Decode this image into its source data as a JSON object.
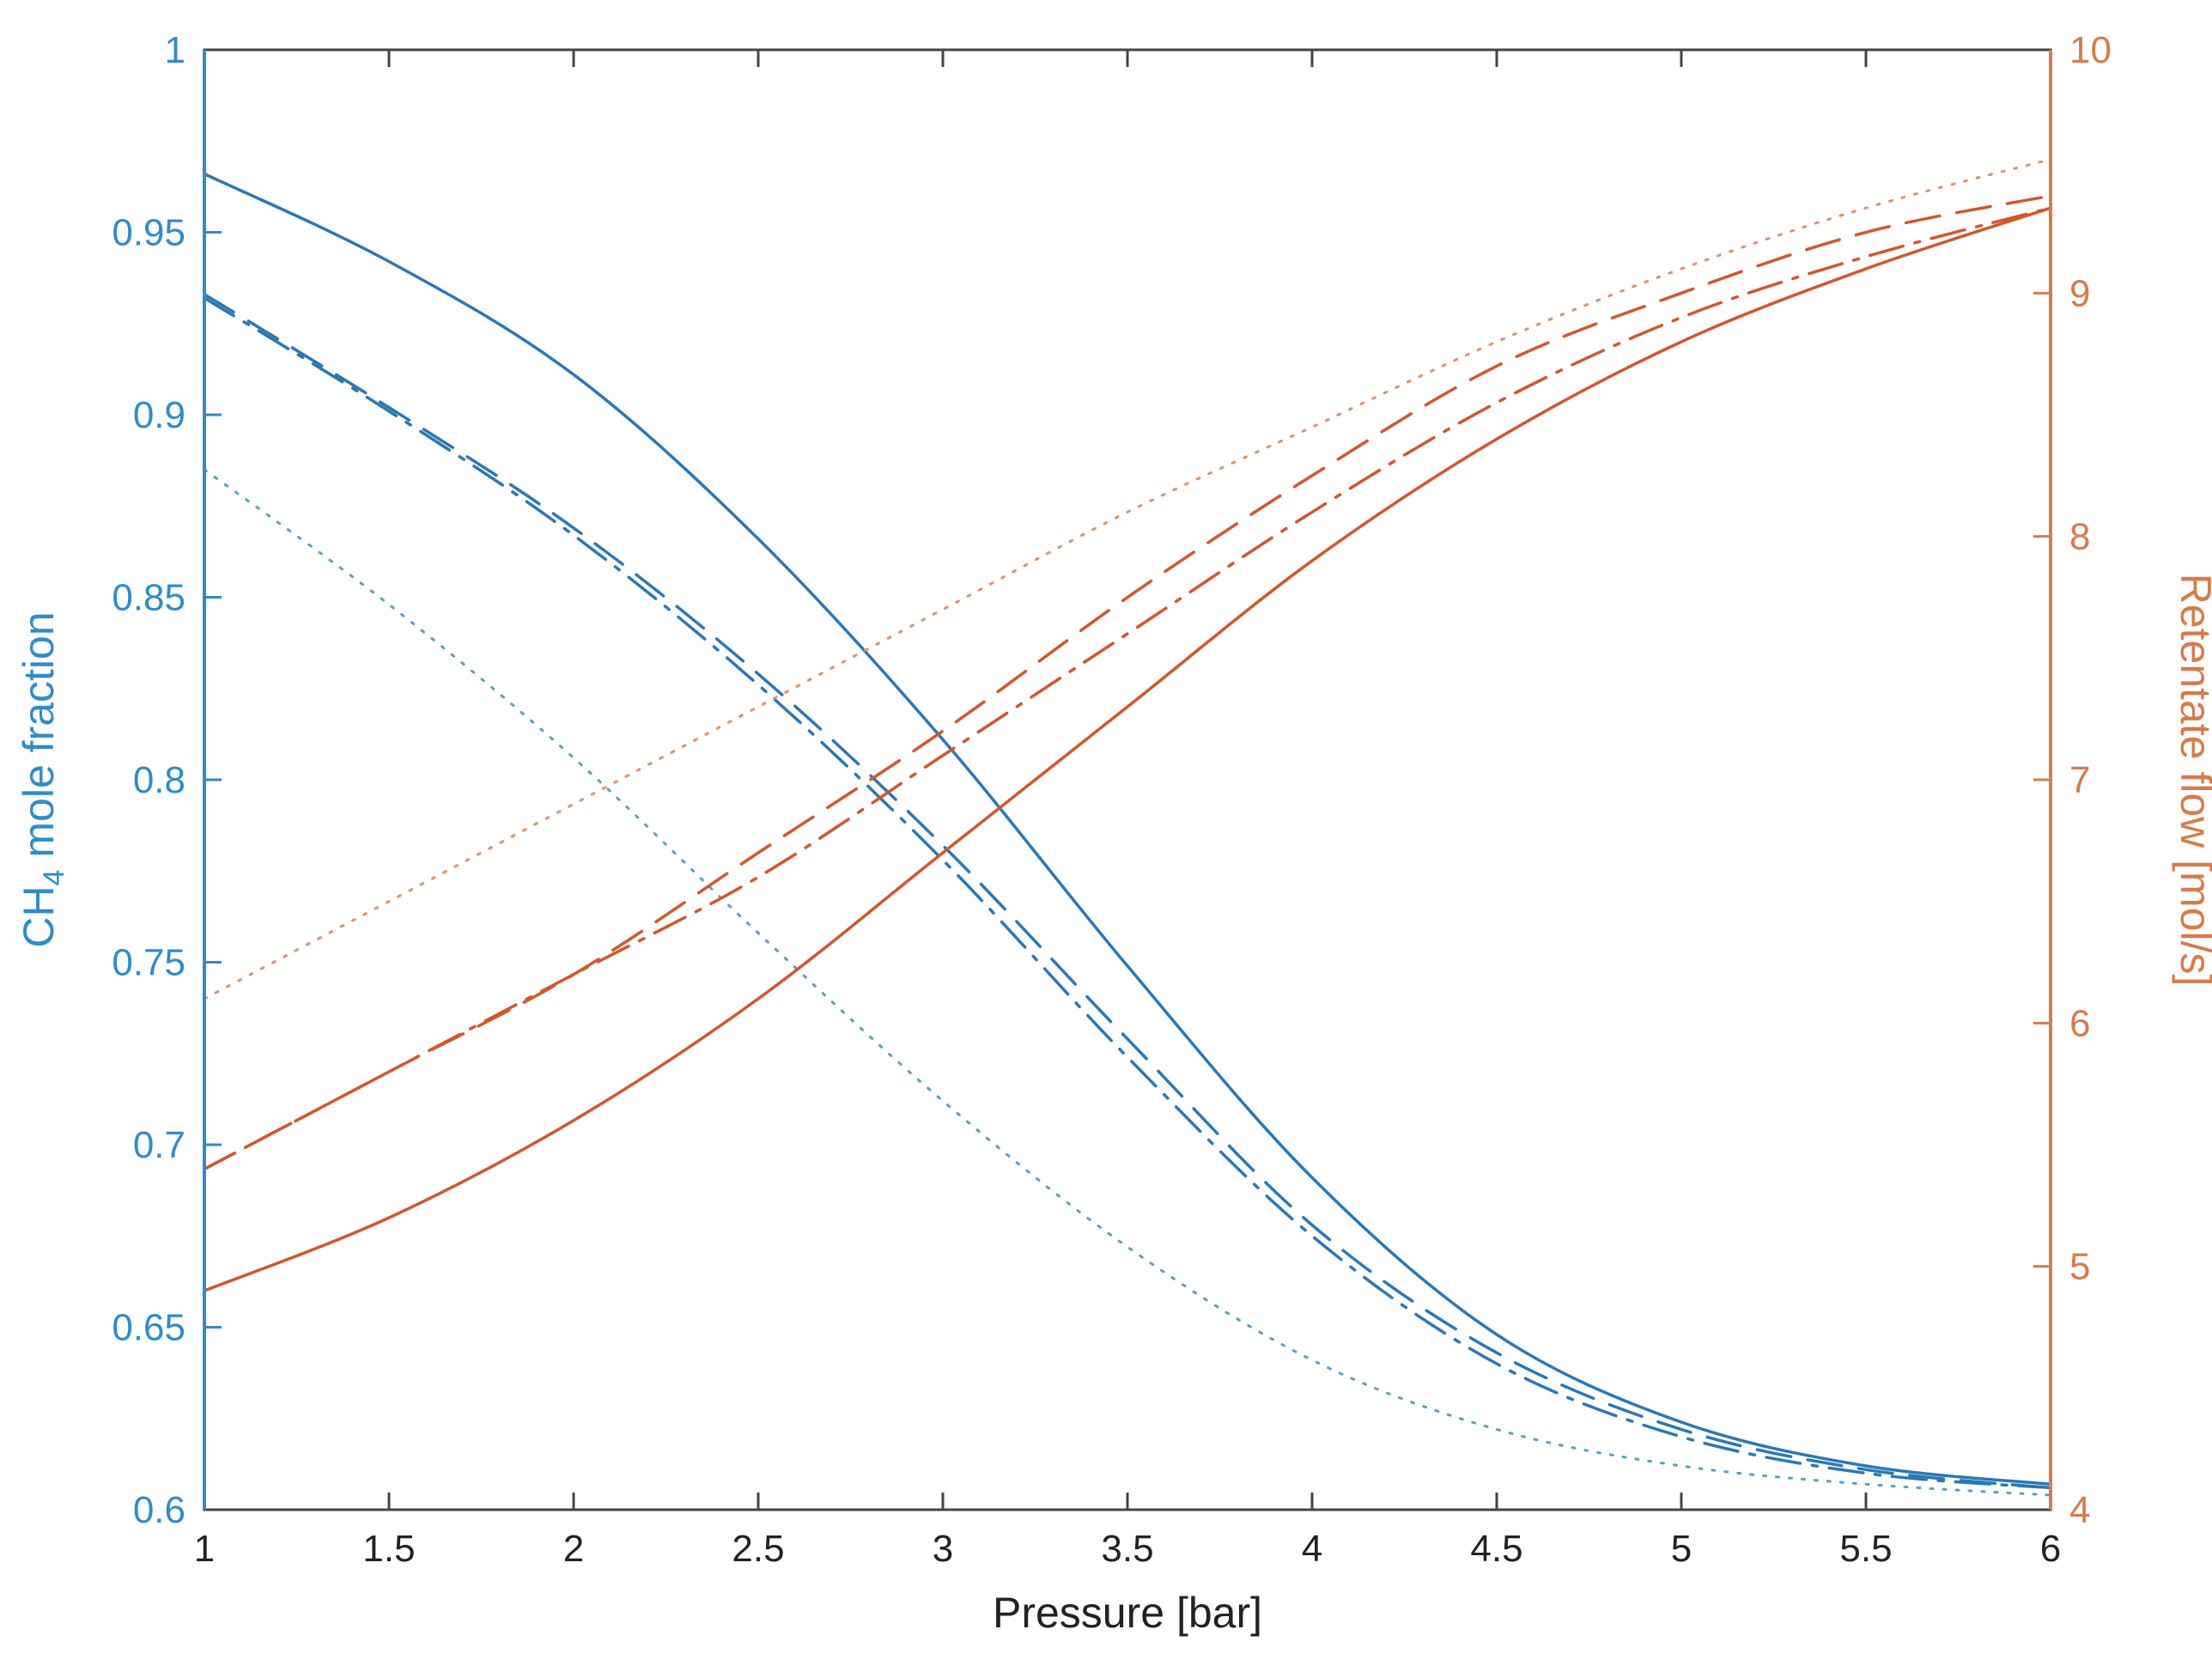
{
  "chart_data": {
    "type": "line",
    "xlabel": "Pressure [bar]",
    "ylabel_left": {
      "prefix": "CH",
      "subscript": "4",
      "suffix": " mole fraction"
    },
    "ylabel_right": "Retentate flow [mol/s]",
    "xlim": [
      1,
      6
    ],
    "ylim_left": [
      0.6,
      1
    ],
    "ylim_right": [
      4,
      10
    ],
    "x_ticks": [
      "1",
      "1.5",
      "2",
      "2.5",
      "3",
      "3.5",
      "4",
      "4.5",
      "5",
      "5.5",
      "6"
    ],
    "y_left_ticks": [
      "0.6",
      "0.65",
      "0.7",
      "0.75",
      "0.8",
      "0.85",
      "0.9",
      "0.95",
      "1"
    ],
    "y_right_ticks": [
      "4",
      "5",
      "6",
      "7",
      "8",
      "9",
      "10"
    ],
    "grid": false,
    "legend": "none",
    "colors": {
      "left_axis": "#2f8cc8",
      "right_axis": "#d97a4a",
      "blue_series": "#2a78b4",
      "orange_series": "#d4562a",
      "frame": "#444444"
    },
    "x": [
      1,
      1.5,
      2,
      2.5,
      3,
      3.5,
      4,
      4.5,
      5,
      5.5,
      6
    ],
    "series": [
      {
        "axis": "left",
        "style": "solid",
        "color": "#2a78b4",
        "values": [
          0.966,
          0.942,
          0.911,
          0.866,
          0.811,
          0.749,
          0.691,
          0.648,
          0.624,
          0.612,
          0.607
        ]
      },
      {
        "axis": "left",
        "style": "dashed",
        "color": "#2a78b4",
        "values": [
          0.933,
          0.902,
          0.869,
          0.829,
          0.782,
          0.729,
          0.678,
          0.643,
          0.622,
          0.611,
          0.606
        ]
      },
      {
        "axis": "left",
        "style": "dashdot",
        "color": "#2a78b4",
        "values": [
          0.932,
          0.901,
          0.867,
          0.826,
          0.778,
          0.724,
          0.675,
          0.64,
          0.62,
          0.61,
          0.606
        ]
      },
      {
        "axis": "left",
        "style": "dotted",
        "color": "#5a9ec8",
        "values": [
          0.885,
          0.848,
          0.806,
          0.758,
          0.712,
          0.672,
          0.641,
          0.622,
          0.612,
          0.607,
          0.604
        ]
      },
      {
        "axis": "right",
        "style": "solid",
        "color": "#d4562a",
        "values": [
          4.9,
          5.2,
          5.6,
          6.1,
          6.7,
          7.3,
          7.9,
          8.4,
          8.8,
          9.1,
          9.35
        ]
      },
      {
        "axis": "right",
        "style": "dashed",
        "color": "#d4562a",
        "values": [
          5.4,
          5.8,
          6.2,
          6.7,
          7.2,
          7.75,
          8.25,
          8.7,
          9.0,
          9.25,
          9.4
        ]
      },
      {
        "axis": "right",
        "style": "dashdot",
        "color": "#d4562a",
        "values": [
          5.4,
          5.8,
          6.2,
          6.6,
          7.1,
          7.6,
          8.1,
          8.55,
          8.9,
          9.15,
          9.35
        ]
      },
      {
        "axis": "right",
        "style": "dotted",
        "color": "#e09068",
        "values": [
          6.1,
          6.5,
          6.9,
          7.3,
          7.7,
          8.1,
          8.45,
          8.8,
          9.1,
          9.35,
          9.55
        ]
      }
    ]
  }
}
